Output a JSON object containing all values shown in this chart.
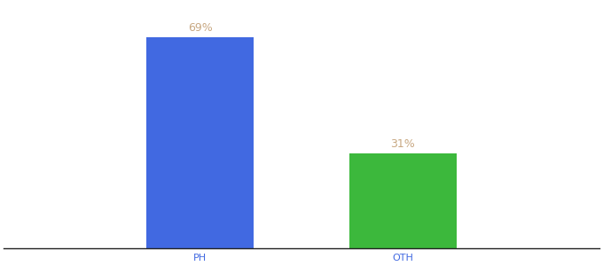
{
  "categories": [
    "PH",
    "OTH"
  ],
  "values": [
    69,
    31
  ],
  "bar_colors": [
    "#4169e1",
    "#3cb83c"
  ],
  "label_color": "#c8a882",
  "tick_label_color": "#4169e1",
  "bar_width": 0.18,
  "ylim": [
    0,
    80
  ],
  "background_color": "#ffffff",
  "annotation_fontsize": 9,
  "tick_fontsize": 8,
  "x_positions": [
    0.33,
    0.67
  ]
}
